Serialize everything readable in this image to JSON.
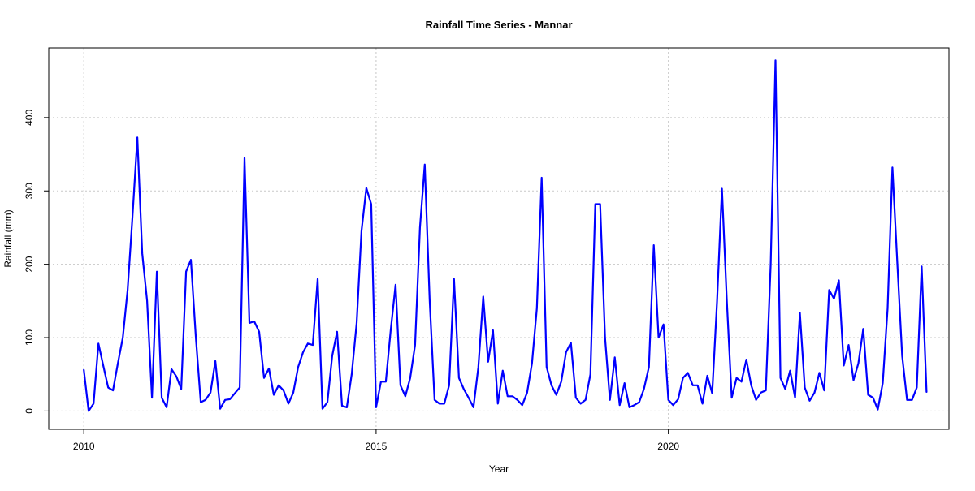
{
  "chart_data": {
    "type": "line",
    "title": "Rainfall Time Series - Mannar",
    "xlabel": "Year",
    "ylabel": "Rainfall (mm)",
    "xlim": [
      2009.4,
      2024.8
    ],
    "ylim": [
      -25,
      495
    ],
    "x_ticks": [
      2010,
      2015,
      2020
    ],
    "x_tick_labels": [
      "2010",
      "2015",
      "2020"
    ],
    "y_ticks": [
      0,
      100,
      200,
      300,
      400
    ],
    "y_tick_labels": [
      "0",
      "100",
      "200",
      "300",
      "400"
    ],
    "grid": true,
    "line_color": "#0000ff",
    "grid_color": "#c8c8c8",
    "series": [
      {
        "x": [
          2010.0,
          2010.083,
          2010.167,
          2010.25,
          2010.333,
          2010.417,
          2010.5,
          2010.583,
          2010.667,
          2010.75,
          2010.833,
          2010.917,
          2011.0,
          2011.083,
          2011.167,
          2011.25,
          2011.333,
          2011.417,
          2011.5,
          2011.583,
          2011.667,
          2011.75,
          2011.833,
          2011.917,
          2012.0,
          2012.083,
          2012.167,
          2012.25,
          2012.333,
          2012.417,
          2012.5,
          2012.583,
          2012.667,
          2012.75,
          2012.833,
          2012.917,
          2013.0,
          2013.083,
          2013.167,
          2013.25,
          2013.333,
          2013.417,
          2013.5,
          2013.583,
          2013.667,
          2013.75,
          2013.833,
          2013.917,
          2014.0,
          2014.083,
          2014.167,
          2014.25,
          2014.333,
          2014.417,
          2014.5,
          2014.583,
          2014.667,
          2014.75,
          2014.833,
          2014.917,
          2015.0,
          2015.083,
          2015.167,
          2015.25,
          2015.333,
          2015.417,
          2015.5,
          2015.583,
          2015.667,
          2015.75,
          2015.833,
          2015.917,
          2016.0,
          2016.083,
          2016.167,
          2016.25,
          2016.333,
          2016.417,
          2016.5,
          2016.583,
          2016.667,
          2016.75,
          2016.833,
          2016.917,
          2017.0,
          2017.083,
          2017.167,
          2017.25,
          2017.333,
          2017.417,
          2017.5,
          2017.583,
          2017.667,
          2017.75,
          2017.833,
          2017.917,
          2018.0,
          2018.083,
          2018.167,
          2018.25,
          2018.333,
          2018.417,
          2018.5,
          2018.583,
          2018.667,
          2018.75,
          2018.833,
          2018.917,
          2019.0,
          2019.083,
          2019.167,
          2019.25,
          2019.333,
          2019.417,
          2019.5,
          2019.583,
          2019.667,
          2019.75,
          2019.833,
          2019.917,
          2020.0,
          2020.083,
          2020.167,
          2020.25,
          2020.333,
          2020.417,
          2020.5,
          2020.583,
          2020.667,
          2020.75,
          2020.833,
          2020.917,
          2021.0,
          2021.083,
          2021.167,
          2021.25,
          2021.333,
          2021.417,
          2021.5,
          2021.583,
          2021.667,
          2021.75,
          2021.833,
          2021.917,
          2022.0,
          2022.083,
          2022.167,
          2022.25,
          2022.333,
          2022.417,
          2022.5,
          2022.583,
          2022.667,
          2022.75,
          2022.833,
          2022.917,
          2023.0,
          2023.083,
          2023.167,
          2023.25,
          2023.333,
          2023.417,
          2023.5,
          2023.583,
          2023.667,
          2023.75,
          2023.833,
          2023.917,
          2024.0,
          2024.083,
          2024.167,
          2024.25,
          2024.333,
          2024.417
        ],
        "y": [
          56,
          0,
          10,
          92,
          62,
          32,
          28,
          65,
          100,
          165,
          265,
          373,
          215,
          150,
          18,
          190,
          18,
          5,
          57,
          47,
          30,
          190,
          206,
          100,
          12,
          15,
          25,
          68,
          3,
          15,
          16,
          24,
          32,
          345,
          120,
          122,
          108,
          45,
          58,
          22,
          35,
          28,
          10,
          25,
          60,
          80,
          92,
          90,
          180,
          3,
          12,
          75,
          108,
          7,
          5,
          50,
          120,
          245,
          304,
          282,
          5,
          40,
          40,
          110,
          172,
          35,
          20,
          45,
          90,
          250,
          336,
          150,
          15,
          10,
          10,
          35,
          180,
          45,
          30,
          18,
          5,
          60,
          156,
          67,
          110,
          10,
          55,
          20,
          20,
          15,
          8,
          25,
          65,
          140,
          318,
          60,
          35,
          22,
          40,
          80,
          93,
          18,
          10,
          15,
          50,
          282,
          282,
          100,
          15,
          73,
          8,
          38,
          5,
          8,
          12,
          30,
          60,
          226,
          100,
          118,
          15,
          8,
          16,
          45,
          52,
          35,
          35,
          10,
          48,
          24,
          150,
          303,
          150,
          18,
          45,
          40,
          70,
          35,
          15,
          25,
          28,
          200,
          478,
          45,
          30,
          55,
          18,
          134,
          32,
          14,
          25,
          52,
          28,
          165,
          153,
          178,
          62,
          90,
          42,
          65,
          112,
          22,
          18,
          2,
          38,
          140,
          332,
          200,
          75,
          15,
          15,
          32,
          197,
          26
        ]
      }
    ]
  }
}
